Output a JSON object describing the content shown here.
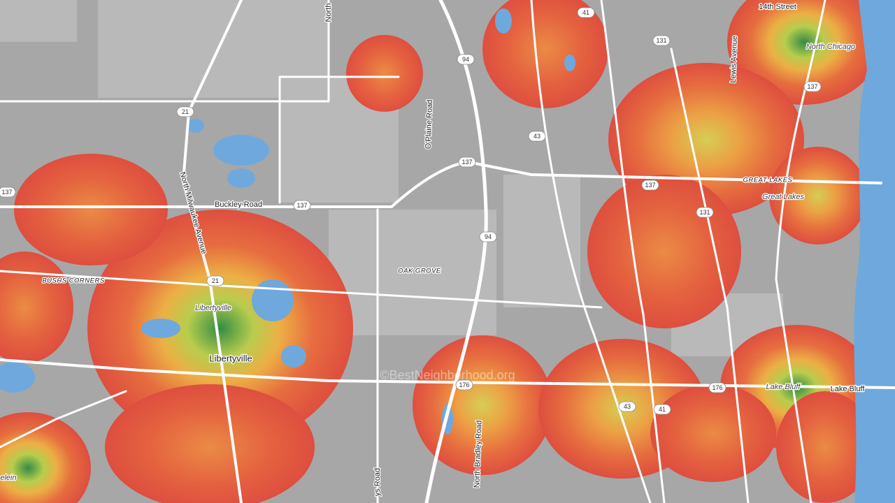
{
  "map": {
    "places": [
      "14th Street",
      "North Chicago",
      "Lewis Avenue",
      "North",
      "O'Plaine Road",
      "Buckley Road",
      "North Milwaukee Avenue",
      "BUSHS CORNERS",
      "Libertyville",
      "Libertyville",
      "OAK GROVE",
      "GREAT LAKES",
      "Great Lakes",
      "Lake Bluff",
      "Lake Bluff",
      "North Bradley Road",
      "ys Road",
      "elein"
    ],
    "routes": [
      "137",
      "137",
      "137",
      "137",
      "137",
      "21",
      "21",
      "41",
      "41",
      "94",
      "94",
      "43",
      "43",
      "131",
      "131",
      "176",
      "176"
    ],
    "watermark": "©BestNeighborhood.org"
  }
}
